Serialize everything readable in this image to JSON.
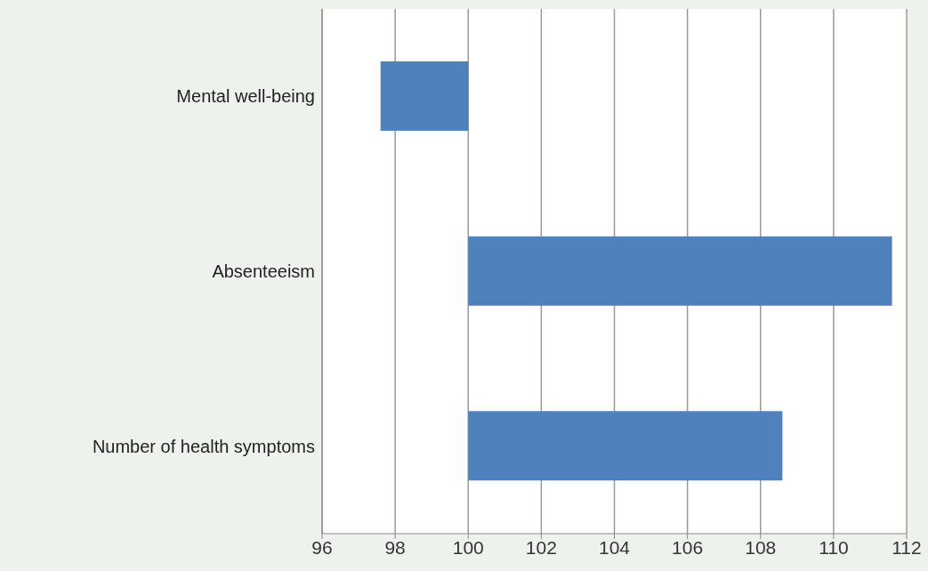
{
  "chart_data": {
    "type": "bar",
    "orientation": "horizontal",
    "categories": [
      "Mental well-being",
      "Absenteeism",
      "Number of health symptoms"
    ],
    "values": [
      -2.4,
      11.6,
      8.6
    ],
    "base": [
      100,
      100,
      100
    ],
    "color": "#4f81bd",
    "xlim": [
      96,
      112
    ],
    "xticks": [
      96,
      98,
      100,
      102,
      104,
      106,
      108,
      110,
      112
    ],
    "grid": "x"
  }
}
